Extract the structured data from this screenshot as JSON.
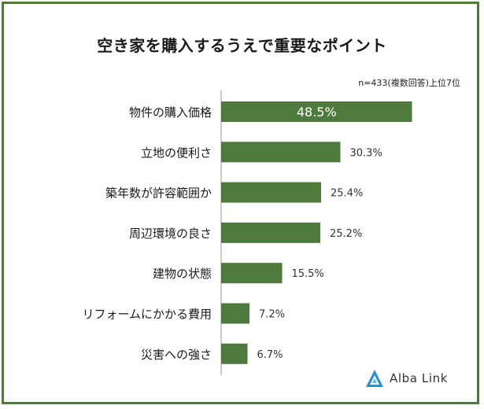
{
  "title": "空き家を購入するうえで重要なポイント",
  "note": "n=433(複数回答)上位7位",
  "logo": {
    "text": "Alba Link",
    "icon": "alba-link-logo-icon"
  },
  "colors": {
    "bar": "#4f7a3e",
    "frame": "#4f7a3e",
    "axis": "#9a9a9a",
    "inner_label": "#ffffff",
    "outer_label": "#333333"
  },
  "chart_data": {
    "type": "bar",
    "orientation": "horizontal",
    "categories": [
      "物件の購入価格",
      "立地の便利さ",
      "築年数が許容範囲か",
      "周辺環境の良さ",
      "建物の状態",
      "リフォームにかかる費用",
      "災害への強さ"
    ],
    "values": [
      48.5,
      30.3,
      25.4,
      25.2,
      15.5,
      7.2,
      6.7
    ],
    "value_labels": [
      "48.5%",
      "30.3%",
      "25.4%",
      "25.2%",
      "15.5%",
      "7.2%",
      "6.7%"
    ],
    "xlim": [
      0,
      50
    ],
    "grid": false,
    "legend": "none"
  }
}
